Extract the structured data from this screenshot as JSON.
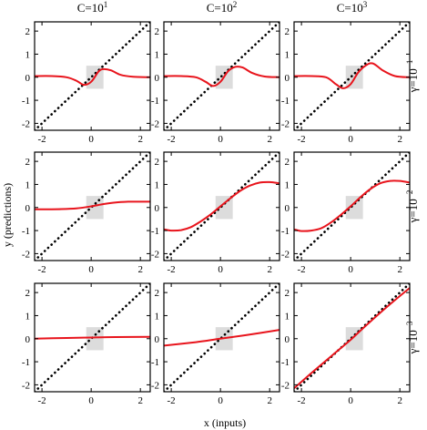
{
  "figure": {
    "xlabel": "x (inputs)",
    "ylabel": "y (predictions)",
    "col_titles": [
      {
        "base": "C=10",
        "exp": "1"
      },
      {
        "base": "C=10",
        "exp": "2"
      },
      {
        "base": "C=10",
        "exp": "3"
      }
    ],
    "row_titles": [
      {
        "base": "γ=10",
        "exp": "−1"
      },
      {
        "base": "γ=10",
        "exp": "−2"
      },
      {
        "base": "γ=10",
        "exp": "−3"
      }
    ],
    "colors": {
      "fit": "#e8141c",
      "identity": "#000000",
      "data_box": "#dcdcdc",
      "frame": "#000000"
    }
  },
  "chart_data": [
    {
      "type": "line",
      "row": 0,
      "col": 0,
      "xlim": [
        -2.3,
        2.4
      ],
      "ylim": [
        -2.3,
        2.4
      ],
      "xticks": [
        "-2",
        "0",
        "2"
      ],
      "yticks": [
        "-2",
        "-1",
        "0",
        "1",
        "2"
      ],
      "data_region": {
        "x": [
          -0.2,
          0.5
        ],
        "y": [
          -0.5,
          0.5
        ]
      },
      "series": [
        {
          "style": "dotted",
          "x": [
            -2.3,
            2.4
          ],
          "y": [
            -2.3,
            2.4
          ]
        },
        {
          "style": "solid",
          "x": [
            -2.3,
            -1.6,
            -1.0,
            -0.6,
            -0.3,
            0.0,
            0.3,
            0.5,
            0.8,
            1.2,
            1.7,
            2.4
          ],
          "y": [
            0.05,
            0.05,
            0.0,
            -0.15,
            -0.33,
            -0.2,
            0.25,
            0.35,
            0.3,
            0.1,
            0.02,
            0.0
          ]
        }
      ]
    },
    {
      "type": "line",
      "row": 0,
      "col": 1,
      "xlim": [
        -2.3,
        2.4
      ],
      "ylim": [
        -2.3,
        2.4
      ],
      "xticks": [
        "-2",
        "0",
        "2"
      ],
      "yticks": [
        "-2",
        "-1",
        "0",
        "1",
        "2"
      ],
      "data_region": {
        "x": [
          -0.2,
          0.5
        ],
        "y": [
          -0.5,
          0.5
        ]
      },
      "series": [
        {
          "style": "dotted",
          "x": [
            -2.3,
            2.4
          ],
          "y": [
            -2.3,
            2.4
          ]
        },
        {
          "style": "solid",
          "x": [
            -2.3,
            -1.6,
            -1.0,
            -0.6,
            -0.3,
            0.0,
            0.3,
            0.6,
            0.9,
            1.3,
            1.8,
            2.4
          ],
          "y": [
            0.05,
            0.05,
            0.0,
            -0.2,
            -0.38,
            -0.2,
            0.25,
            0.45,
            0.42,
            0.18,
            0.03,
            0.0
          ]
        }
      ]
    },
    {
      "type": "line",
      "row": 0,
      "col": 2,
      "xlim": [
        -2.3,
        2.4
      ],
      "ylim": [
        -2.3,
        2.4
      ],
      "xticks": [
        "-2",
        "0",
        "2"
      ],
      "yticks": [
        "-2",
        "-1",
        "0",
        "1",
        "2"
      ],
      "data_region": {
        "x": [
          -0.2,
          0.5
        ],
        "y": [
          -0.5,
          0.5
        ]
      },
      "series": [
        {
          "style": "dotted",
          "x": [
            -2.3,
            2.4
          ],
          "y": [
            -2.3,
            2.4
          ]
        },
        {
          "style": "solid",
          "x": [
            -2.3,
            -1.6,
            -1.0,
            -0.6,
            -0.3,
            0.0,
            0.3,
            0.6,
            0.9,
            1.3,
            1.8,
            2.4
          ],
          "y": [
            0.05,
            0.05,
            0.0,
            -0.3,
            -0.48,
            -0.3,
            0.2,
            0.5,
            0.6,
            0.3,
            0.05,
            0.0
          ]
        }
      ]
    },
    {
      "type": "line",
      "row": 1,
      "col": 0,
      "xlim": [
        -2.3,
        2.4
      ],
      "ylim": [
        -2.3,
        2.4
      ],
      "xticks": [
        "-2",
        "0",
        "2"
      ],
      "yticks": [
        "-2",
        "-1",
        "0",
        "1",
        "2"
      ],
      "data_region": {
        "x": [
          -0.2,
          0.5
        ],
        "y": [
          -0.5,
          0.5
        ]
      },
      "series": [
        {
          "style": "dotted",
          "x": [
            -2.3,
            2.4
          ],
          "y": [
            -2.3,
            2.4
          ]
        },
        {
          "style": "solid",
          "x": [
            -2.3,
            -1.8,
            -1.2,
            -0.6,
            0.0,
            0.5,
            1.0,
            1.5,
            2.0,
            2.4
          ],
          "y": [
            -0.08,
            -0.08,
            -0.07,
            -0.04,
            0.05,
            0.15,
            0.22,
            0.25,
            0.25,
            0.25
          ]
        }
      ]
    },
    {
      "type": "line",
      "row": 1,
      "col": 1,
      "xlim": [
        -2.3,
        2.4
      ],
      "ylim": [
        -2.3,
        2.4
      ],
      "xticks": [
        "-2",
        "0",
        "2"
      ],
      "yticks": [
        "-2",
        "-1",
        "0",
        "1",
        "2"
      ],
      "data_region": {
        "x": [
          -0.2,
          0.5
        ],
        "y": [
          -0.5,
          0.5
        ]
      },
      "series": [
        {
          "style": "dotted",
          "x": [
            -2.3,
            2.4
          ],
          "y": [
            -2.3,
            2.4
          ]
        },
        {
          "style": "solid",
          "x": [
            -2.3,
            -2.0,
            -1.6,
            -1.2,
            -0.8,
            -0.4,
            0.0,
            0.4,
            0.8,
            1.2,
            1.6,
            2.0,
            2.4
          ],
          "y": [
            -0.95,
            -1.0,
            -0.98,
            -0.85,
            -0.6,
            -0.3,
            0.05,
            0.4,
            0.72,
            0.95,
            1.08,
            1.1,
            1.05
          ]
        }
      ]
    },
    {
      "type": "line",
      "row": 1,
      "col": 2,
      "xlim": [
        -2.3,
        2.4
      ],
      "ylim": [
        -2.3,
        2.4
      ],
      "xticks": [
        "-2",
        "0",
        "2"
      ],
      "yticks": [
        "-2",
        "-1",
        "0",
        "1",
        "2"
      ],
      "data_region": {
        "x": [
          -0.2,
          0.5
        ],
        "y": [
          -0.5,
          0.5
        ]
      },
      "series": [
        {
          "style": "dotted",
          "x": [
            -2.3,
            2.4
          ],
          "y": [
            -2.3,
            2.4
          ]
        },
        {
          "style": "solid",
          "x": [
            -2.3,
            -2.0,
            -1.6,
            -1.2,
            -0.8,
            -0.4,
            0.0,
            0.4,
            0.8,
            1.2,
            1.6,
            2.0,
            2.4
          ],
          "y": [
            -0.95,
            -1.02,
            -1.0,
            -0.9,
            -0.65,
            -0.32,
            0.05,
            0.45,
            0.8,
            1.05,
            1.15,
            1.15,
            1.08
          ]
        }
      ]
    },
    {
      "type": "line",
      "row": 2,
      "col": 0,
      "xlim": [
        -2.3,
        2.4
      ],
      "ylim": [
        -2.3,
        2.4
      ],
      "xticks": [
        "-2",
        "0",
        "2"
      ],
      "yticks": [
        "-2",
        "-1",
        "0",
        "1",
        "2"
      ],
      "data_region": {
        "x": [
          -0.2,
          0.5
        ],
        "y": [
          -0.5,
          0.5
        ]
      },
      "series": [
        {
          "style": "dotted",
          "x": [
            -2.3,
            2.4
          ],
          "y": [
            -2.3,
            2.4
          ]
        },
        {
          "style": "solid",
          "x": [
            -2.3,
            -1.0,
            0.0,
            1.0,
            2.4
          ],
          "y": [
            0.0,
            0.03,
            0.05,
            0.07,
            0.08
          ]
        }
      ]
    },
    {
      "type": "line",
      "row": 2,
      "col": 1,
      "xlim": [
        -2.3,
        2.4
      ],
      "ylim": [
        -2.3,
        2.4
      ],
      "xticks": [
        "-2",
        "0",
        "2"
      ],
      "yticks": [
        "-2",
        "-1",
        "0",
        "1",
        "2"
      ],
      "data_region": {
        "x": [
          -0.2,
          0.5
        ],
        "y": [
          -0.5,
          0.5
        ]
      },
      "series": [
        {
          "style": "dotted",
          "x": [
            -2.3,
            2.4
          ],
          "y": [
            -2.3,
            2.4
          ]
        },
        {
          "style": "solid",
          "x": [
            -2.3,
            -1.0,
            0.0,
            1.0,
            2.4
          ],
          "y": [
            -0.3,
            -0.15,
            0.0,
            0.15,
            0.38
          ]
        }
      ]
    },
    {
      "type": "line",
      "row": 2,
      "col": 2,
      "xlim": [
        -2.3,
        2.4
      ],
      "ylim": [
        -2.3,
        2.4
      ],
      "xticks": [
        "-2",
        "0",
        "2"
      ],
      "yticks": [
        "-2",
        "-1",
        "0",
        "1",
        "2"
      ],
      "data_region": {
        "x": [
          -0.2,
          0.5
        ],
        "y": [
          -0.5,
          0.5
        ]
      },
      "series": [
        {
          "style": "dotted",
          "x": [
            -2.3,
            2.4
          ],
          "y": [
            -2.3,
            2.4
          ]
        },
        {
          "style": "solid",
          "x": [
            -2.3,
            -1.5,
            -0.5,
            0.0,
            0.5,
            1.5,
            2.4
          ],
          "y": [
            -2.15,
            -1.4,
            -0.5,
            -0.05,
            0.45,
            1.4,
            2.2
          ]
        }
      ]
    }
  ]
}
